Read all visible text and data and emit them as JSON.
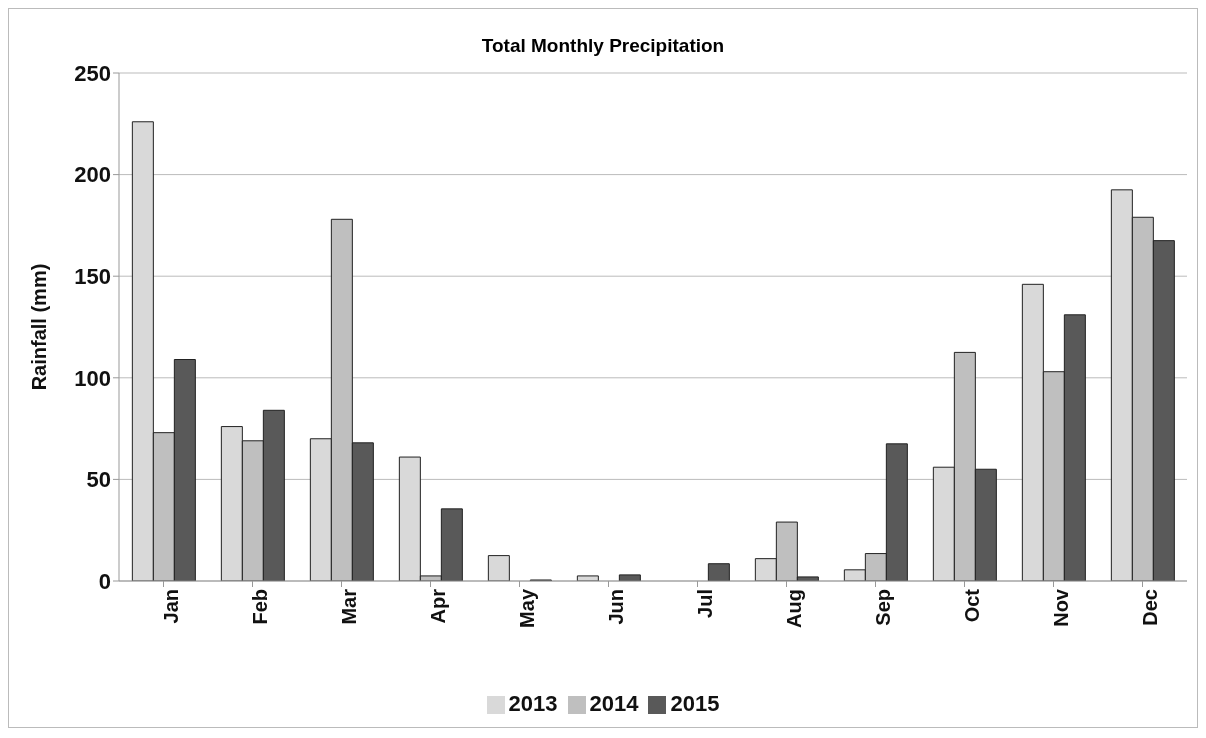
{
  "chart_data": {
    "type": "bar",
    "title": "Total Monthly Precipitation",
    "ylabel": "Rainfall (mm)",
    "categories": [
      "Jan",
      "Feb",
      "Mar",
      "Apr",
      "May",
      "Jun",
      "Jul",
      "Aug",
      "Sep",
      "Oct",
      "Nov",
      "Dec"
    ],
    "series": [
      {
        "name": "2013",
        "color": "#d9d9d9",
        "values": [
          226,
          76,
          70,
          61,
          12.5,
          2.5,
          0,
          11,
          5.5,
          56,
          146,
          192.5
        ]
      },
      {
        "name": "2014",
        "color": "#bfbfbf",
        "values": [
          73,
          69,
          178,
          2.5,
          0,
          0,
          0,
          29,
          13.5,
          112.5,
          103,
          179
        ]
      },
      {
        "name": "2015",
        "color": "#595959",
        "values": [
          109,
          84,
          68,
          35.5,
          0.5,
          3,
          8.5,
          2,
          67.5,
          55,
          131,
          167.5
        ]
      }
    ],
    "ylim": [
      0,
      250
    ],
    "yticks": [
      0,
      50,
      100,
      150,
      200,
      250
    ],
    "grid": "y",
    "legend": "bottom"
  }
}
